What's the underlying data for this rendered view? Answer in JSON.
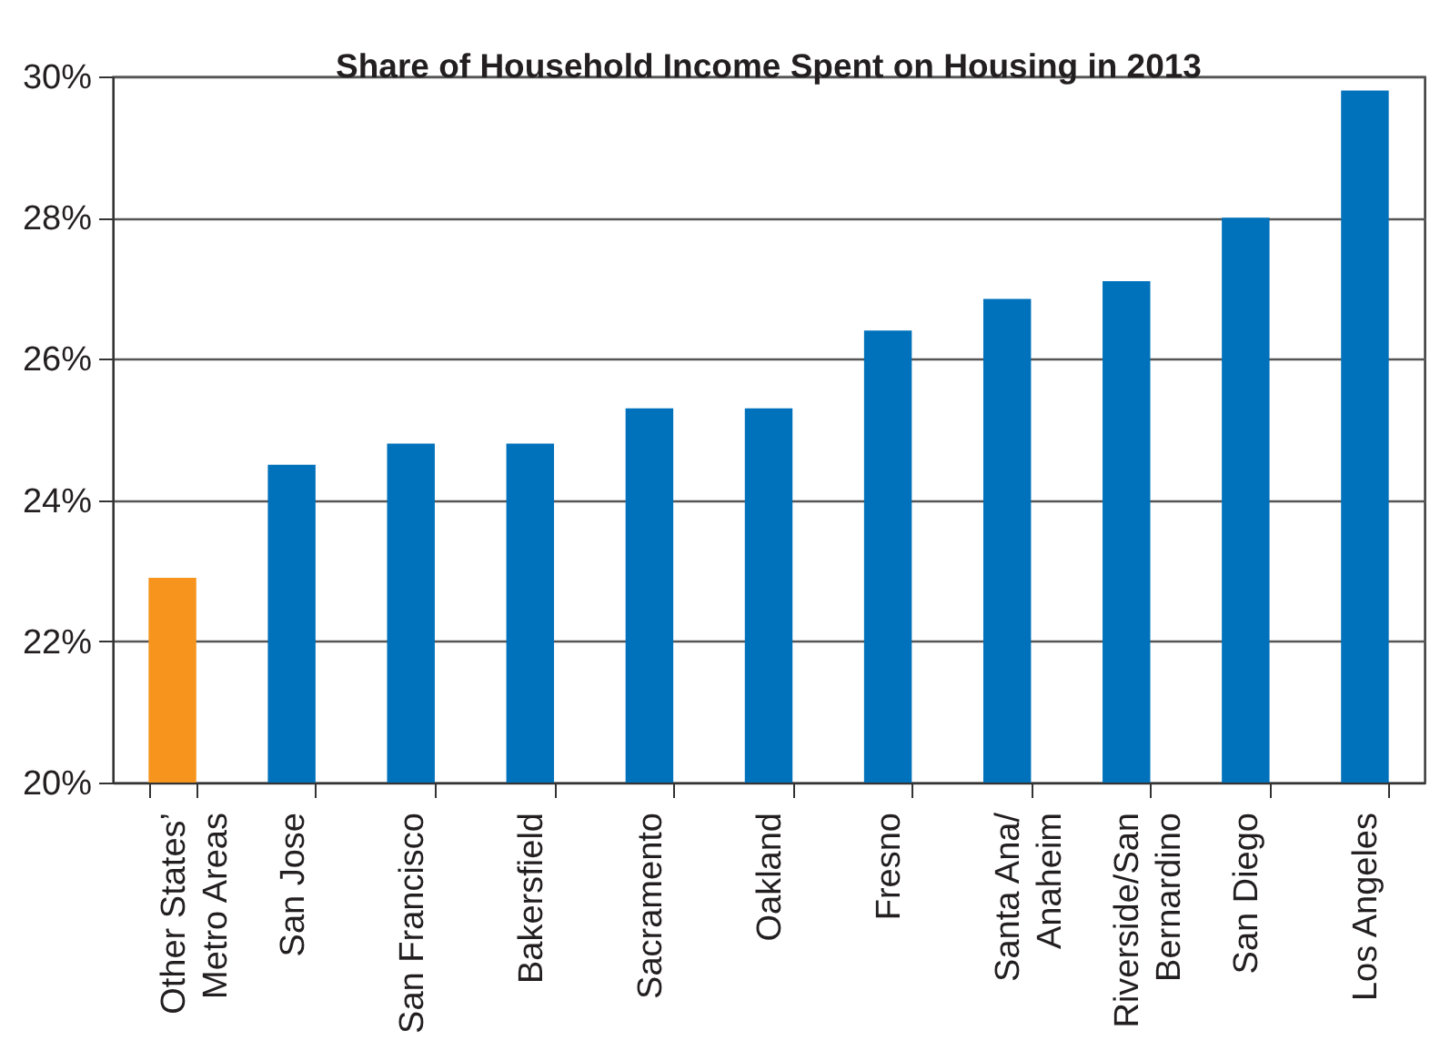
{
  "chart_data": {
    "type": "bar",
    "title": "Share of Household Income Spent on Housing in 2013",
    "categories": [
      "Other States’\nMetro Areas",
      "San Jose",
      "San Francisco",
      "Bakersfield",
      "Sacramento",
      "Oakland",
      "Fresno",
      "Santa Ana/\nAnaheim",
      "Riverside/San\nBernardino",
      "San Diego",
      "Los Angeles"
    ],
    "values": [
      22.9,
      24.5,
      24.8,
      24.8,
      25.3,
      25.3,
      26.4,
      26.85,
      27.1,
      28.0,
      29.8
    ],
    "colors": [
      "#f7941d",
      "#0071bb",
      "#0071bb",
      "#0071bb",
      "#0071bb",
      "#0071bb",
      "#0071bb",
      "#0071bb",
      "#0071bb",
      "#0071bb",
      "#0071bb"
    ],
    "ylim": [
      20,
      30
    ],
    "yticks": [
      {
        "value": 20,
        "label": "20%"
      },
      {
        "value": 22,
        "label": "22%"
      },
      {
        "value": 24,
        "label": "24%"
      },
      {
        "value": 26,
        "label": "26%"
      },
      {
        "value": 28,
        "label": "28%"
      },
      {
        "value": 30,
        "label": "30%"
      }
    ],
    "grid": "y"
  }
}
